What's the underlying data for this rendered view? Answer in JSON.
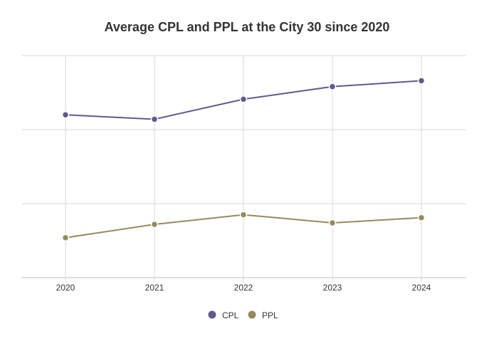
{
  "chart_data": {
    "type": "line",
    "title": "Average CPL and PPL at the City 30 since 2020",
    "xlabel": "",
    "ylabel": "",
    "categories": [
      "2020",
      "2021",
      "2022",
      "2023",
      "2024"
    ],
    "ylim": [
      0,
      3
    ],
    "y_tick_labels_shown": false,
    "grid": true,
    "legend_position": "bottom",
    "series": [
      {
        "name": "CPL",
        "color": "#5f5a8e",
        "values": [
          2.2,
          2.14,
          2.41,
          2.58,
          2.66
        ]
      },
      {
        "name": "PPL",
        "color": "#968a5e",
        "values": [
          0.54,
          0.72,
          0.85,
          0.74,
          0.81
        ]
      }
    ]
  }
}
